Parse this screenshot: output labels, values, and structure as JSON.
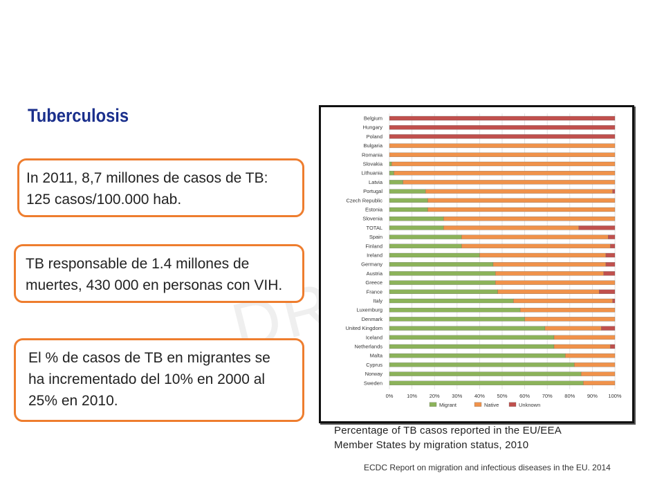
{
  "slide": {
    "watermark": "DRA",
    "title": "Tuberculosis",
    "box1": {
      "line1": "In 2011, 8,7 millones de casos de TB:",
      "line2": "125 casos/100.000 hab."
    },
    "box2": {
      "line1": "TB responsable de 1.4 millones de",
      "line2": "muertes, 430 000 en personas con VIH."
    },
    "box3": {
      "line1": "El  % de casos de TB en migrantes se",
      "line2": "ha incrementado del 10% en 2000 al",
      "line3": "25% en 2010."
    },
    "caption": {
      "line1": "Percentage of TB casos reported in the EU/EEA",
      "line2": "Member States by migration status, 2010"
    },
    "source": "ECDC Report on migration and infectious diseases in the EU.  2014"
  },
  "colors": {
    "migrant": "#8cb35a",
    "native": "#f0924a",
    "unknown": "#c0504d",
    "accent": "#ee7d2e",
    "title": "#1a2f8c"
  },
  "chart_data": {
    "type": "bar",
    "orientation": "horizontal",
    "stacked": true,
    "categories": [
      "Belgium",
      "Hungary",
      "Poland",
      "Bulgaria",
      "Romania",
      "Slovakia",
      "Lithuania",
      "Latvia",
      "Portugal",
      "Czech Republic",
      "Estonia",
      "Slovenia",
      "TOTAL",
      "Spain",
      "Finland",
      "Ireland",
      "Germany",
      "Austria",
      "Greece",
      "France",
      "Italy",
      "Luxemburg",
      "Denmark",
      "United Kingdom",
      "Iceland",
      "Netherlands",
      "Malta",
      "Cyprus",
      "Norway",
      "Sweden"
    ],
    "series": [
      {
        "name": "Migrant",
        "values": [
          0,
          0,
          0,
          0,
          0,
          1,
          2,
          6,
          16,
          17,
          17,
          24,
          24,
          32,
          32,
          40,
          46,
          47,
          47,
          48,
          55,
          58,
          60,
          69,
          73,
          73,
          78,
          82,
          85,
          86
        ]
      },
      {
        "name": "Native",
        "values": [
          0,
          0,
          0,
          100,
          100,
          99,
          98,
          94,
          83,
          83,
          83,
          76,
          60,
          65,
          66,
          56,
          50,
          48,
          53,
          45,
          44,
          42,
          40,
          25,
          27,
          25,
          22,
          18,
          15,
          14
        ]
      },
      {
        "name": "Unknown",
        "values": [
          100,
          100,
          100,
          0,
          0,
          0,
          0,
          0,
          1,
          0,
          0,
          0,
          16,
          3,
          2,
          4,
          4,
          5,
          0,
          7,
          1,
          0,
          0,
          6,
          0,
          2,
          0,
          0,
          0,
          0
        ]
      }
    ],
    "xlim": [
      0,
      100
    ],
    "xticks": [
      "0%",
      "10%",
      "20%",
      "30%",
      "40%",
      "50%",
      "60%",
      "70%",
      "80%",
      "90%",
      "100%"
    ],
    "legend": {
      "position": "bottom",
      "labels": [
        "Migrant",
        "Native",
        "Unknown"
      ]
    },
    "grid": true
  }
}
